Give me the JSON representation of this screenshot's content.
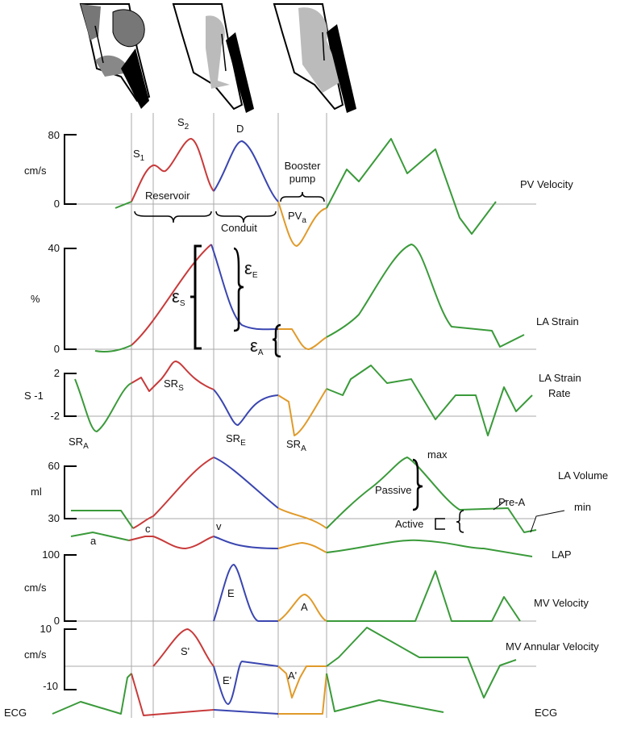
{
  "pv": {
    "title": "PV Velocity",
    "unit": "cm/s",
    "ticks": [
      "80",
      "0"
    ],
    "s1": {
      "t": "S",
      "sub": "1"
    },
    "s2": {
      "t": "S",
      "sub": "2"
    },
    "d": "D",
    "reservoir": "Reservoir",
    "conduit": "Conduit",
    "booster": [
      "Booster",
      "pump"
    ],
    "pva": {
      "t": "PV",
      "sub": "a"
    }
  },
  "strain": {
    "title": "LA Strain",
    "unit": "%",
    "ticks": [
      "40",
      "0"
    ],
    "es": {
      "t": "ε",
      "sub": "S"
    },
    "ee": {
      "t": "ε",
      "sub": "E"
    },
    "ea": {
      "t": "ε",
      "sub": "A"
    }
  },
  "rate": {
    "title": [
      "LA Strain",
      "Rate"
    ],
    "unit": "S -1",
    "ticks": [
      "2",
      "-2"
    ],
    "srs": {
      "t": "SR",
      "sub": "S"
    },
    "sre": {
      "t": "SR",
      "sub": "E"
    },
    "sra": {
      "t": "SR",
      "sub": "A"
    },
    "sra_left": {
      "t": "SR",
      "sub": "A"
    }
  },
  "volume": {
    "title": "LA Volume",
    "unit": "ml",
    "ticks": [
      "60",
      "30"
    ],
    "max": "max",
    "passive": "Passive",
    "prea": "Pre-A",
    "active": "Active",
    "min": "min"
  },
  "lap": {
    "title": "LAP",
    "a": "a",
    "c": "c",
    "v": "v"
  },
  "mv": {
    "title": "MV Velocity",
    "unit": "cm/s",
    "ticks": [
      "100",
      "0"
    ],
    "e": "E",
    "a": "A"
  },
  "annular": {
    "title": "MV Annular Velocity",
    "unit": "cm/s",
    "ticks": [
      "10",
      "-10"
    ],
    "s": "S'",
    "e": "E'",
    "a": "A'"
  },
  "ecg": {
    "left": "ECG",
    "right": "ECG"
  }
}
